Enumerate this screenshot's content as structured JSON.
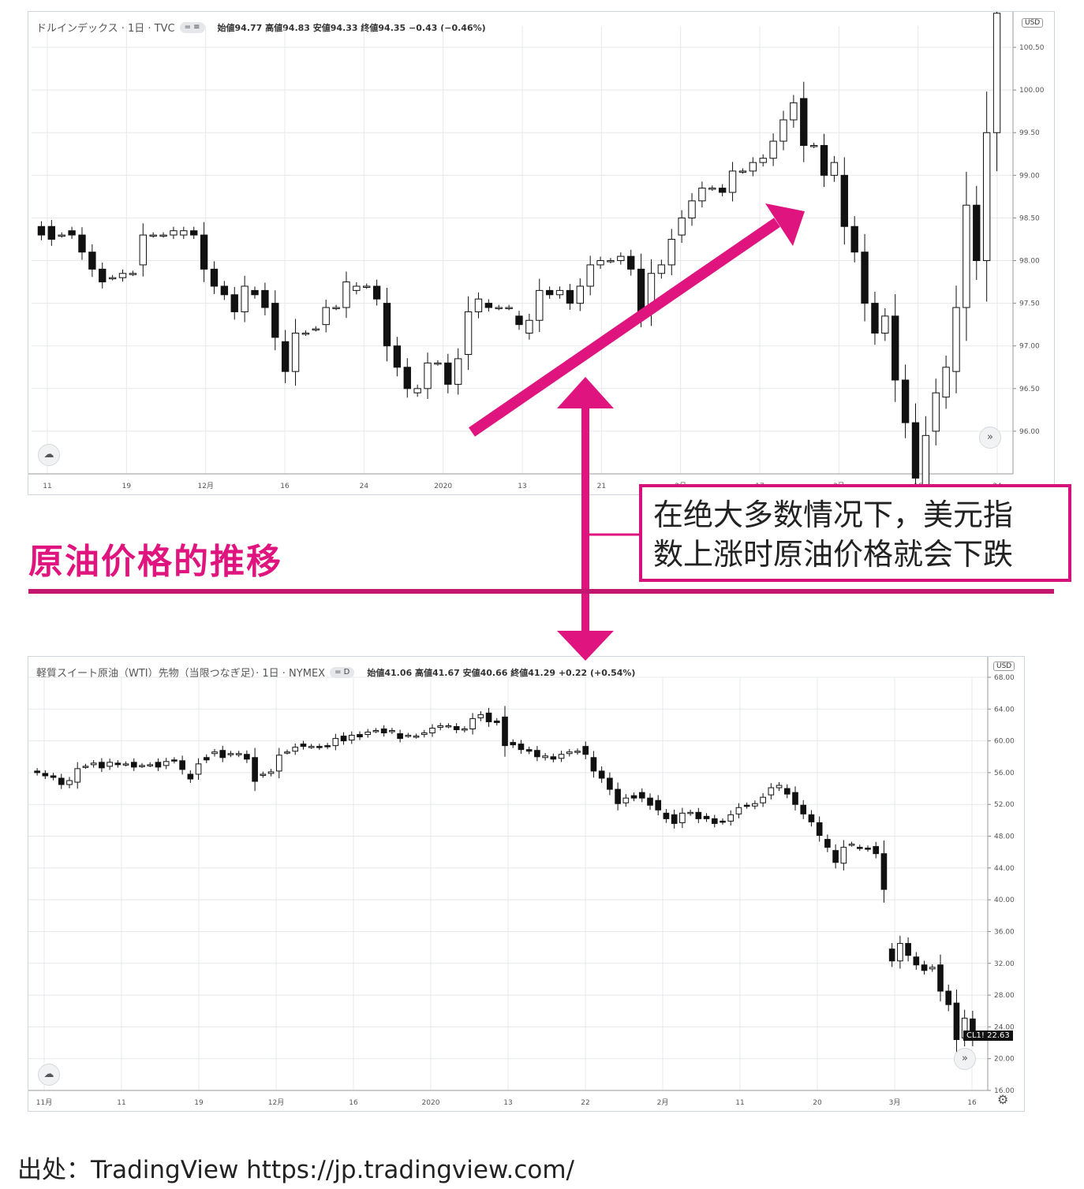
{
  "colors": {
    "accent": "#e0147e",
    "grid": "#e6e8ec",
    "candle": "#111111",
    "axis": "#555555"
  },
  "chart_data": [
    {
      "type": "candlestick",
      "title": "ドルインデックス · 1日 · TVC",
      "legend_pill": "= ≡",
      "ohlc_text": "始値94.77 高値94.83 安値94.33 終値94.35 −0.43 (−0.46%)",
      "currency": "USD",
      "ylim": [
        95.5,
        100.75
      ],
      "yticks": [
        "100.50",
        "100.00",
        "99.50",
        "99.00",
        "98.50",
        "98.00",
        "97.50",
        "97.00",
        "96.50",
        "96.00"
      ],
      "xticks": [
        "11",
        "19",
        "12月",
        "16",
        "24",
        "2020",
        "13",
        "21",
        "2月",
        "17",
        "3月",
        "16",
        "24"
      ],
      "candles": [
        [
          98.4,
          98.3
        ],
        [
          98.4,
          98.25
        ],
        [
          98.3,
          98.3
        ],
        [
          98.35,
          98.3
        ],
        [
          98.3,
          98.1
        ],
        [
          98.1,
          97.9
        ],
        [
          97.9,
          97.75
        ],
        [
          97.8,
          97.8
        ],
        [
          97.8,
          97.85
        ],
        [
          97.85,
          97.85
        ],
        [
          97.95,
          98.3
        ],
        [
          98.3,
          98.3
        ],
        [
          98.3,
          98.3
        ],
        [
          98.3,
          98.35
        ],
        [
          98.3,
          98.35
        ],
        [
          98.35,
          98.3
        ],
        [
          98.3,
          97.9
        ],
        [
          97.9,
          97.7
        ],
        [
          97.7,
          97.6
        ],
        [
          97.6,
          97.4
        ],
        [
          97.4,
          97.7
        ],
        [
          97.65,
          97.6
        ],
        [
          97.65,
          97.45
        ],
        [
          97.5,
          97.1
        ],
        [
          97.05,
          96.7
        ],
        [
          96.7,
          97.15
        ],
        [
          97.15,
          97.15
        ],
        [
          97.2,
          97.2
        ],
        [
          97.25,
          97.45
        ],
        [
          97.45,
          97.45
        ],
        [
          97.45,
          97.75
        ],
        [
          97.65,
          97.7
        ],
        [
          97.7,
          97.7
        ],
        [
          97.7,
          97.55
        ],
        [
          97.5,
          97.0
        ],
        [
          97.0,
          96.75
        ],
        [
          96.75,
          96.5
        ],
        [
          96.45,
          96.5
        ],
        [
          96.5,
          96.8
        ],
        [
          96.8,
          96.8
        ],
        [
          96.8,
          96.55
        ],
        [
          96.55,
          96.85
        ],
        [
          96.9,
          97.4
        ],
        [
          97.4,
          97.55
        ],
        [
          97.5,
          97.45
        ],
        [
          97.45,
          97.45
        ],
        [
          97.45,
          97.45
        ],
        [
          97.35,
          97.25
        ],
        [
          97.15,
          97.3
        ],
        [
          97.3,
          97.65
        ],
        [
          97.65,
          97.6
        ],
        [
          97.6,
          97.65
        ],
        [
          97.65,
          97.5
        ],
        [
          97.5,
          97.7
        ],
        [
          97.7,
          97.95
        ],
        [
          97.95,
          98.0
        ],
        [
          98.0,
          98.0
        ],
        [
          98.0,
          98.05
        ],
        [
          98.05,
          97.9
        ],
        [
          97.9,
          97.4
        ],
        [
          97.4,
          97.85
        ],
        [
          97.85,
          97.95
        ],
        [
          97.95,
          98.25
        ],
        [
          98.3,
          98.5
        ],
        [
          98.5,
          98.7
        ],
        [
          98.7,
          98.85
        ],
        [
          98.85,
          98.85
        ],
        [
          98.85,
          98.8
        ],
        [
          98.8,
          99.05
        ],
        [
          99.05,
          99.05
        ],
        [
          99.05,
          99.15
        ],
        [
          99.15,
          99.2
        ],
        [
          99.2,
          99.4
        ],
        [
          99.4,
          99.65
        ],
        [
          99.65,
          99.85
        ],
        [
          99.9,
          99.35
        ],
        [
          99.35,
          99.35
        ],
        [
          99.35,
          99.0
        ],
        [
          99.0,
          99.15
        ],
        [
          99.0,
          98.4
        ],
        [
          98.4,
          98.1
        ],
        [
          98.1,
          97.5
        ],
        [
          97.5,
          97.15
        ],
        [
          97.15,
          97.35
        ],
        [
          97.35,
          96.6
        ],
        [
          96.6,
          96.1
        ],
        [
          96.1,
          95.45
        ],
        [
          95.3,
          95.95
        ],
        [
          96.0,
          96.45
        ],
        [
          96.4,
          96.75
        ],
        [
          96.7,
          97.45
        ],
        [
          97.45,
          98.65
        ],
        [
          98.65,
          98.0
        ],
        [
          98.0,
          99.5
        ],
        [
          99.5,
          100.9
        ]
      ]
    },
    {
      "type": "candlestick",
      "title": "軽質スイート原油（WTI）先物（当限つなぎ足）· 1日 · NYMEX",
      "legend_pill": "= D",
      "ohlc_text": "始値41.06 高値41.67 安値40.66 終値41.29 +0.22 (+0.54%)",
      "currency": "USD",
      "last_price_label": "CL1!",
      "last_price": "22.63",
      "ylim": [
        16,
        68
      ],
      "yticks": [
        "68.00",
        "64.00",
        "60.00",
        "56.00",
        "52.00",
        "48.00",
        "44.00",
        "40.00",
        "36.00",
        "32.00",
        "28.00",
        "24.00",
        "20.00",
        "16.00"
      ],
      "xticks": [
        "11月",
        "11",
        "19",
        "12月",
        "16",
        "2020",
        "13",
        "22",
        "2月",
        "11",
        "20",
        "3月",
        "16"
      ],
      "candles": [
        [
          56.2,
          56.0
        ],
        [
          55.9,
          55.6
        ],
        [
          55.6,
          55.4
        ],
        [
          55.3,
          54.5
        ],
        [
          54.5,
          55.0
        ],
        [
          54.8,
          56.5
        ],
        [
          56.8,
          56.8
        ],
        [
          57.0,
          57.2
        ],
        [
          57.3,
          56.6
        ],
        [
          56.8,
          57.3
        ],
        [
          57.2,
          57.0
        ],
        [
          57.1,
          57.1
        ],
        [
          57.3,
          56.7
        ],
        [
          56.9,
          56.9
        ],
        [
          57.0,
          57.0
        ],
        [
          57.3,
          56.7
        ],
        [
          56.9,
          57.4
        ],
        [
          57.6,
          57.5
        ],
        [
          57.5,
          56.4
        ],
        [
          55.8,
          55.2
        ],
        [
          55.8,
          57.1
        ],
        [
          57.9,
          57.6
        ],
        [
          58.4,
          58.6
        ],
        [
          58.8,
          57.9
        ],
        [
          58.3,
          58.4
        ],
        [
          58.3,
          58.4
        ],
        [
          58.3,
          57.7
        ],
        [
          57.9,
          54.9
        ],
        [
          55.7,
          55.8
        ],
        [
          55.9,
          56.1
        ],
        [
          56.2,
          58.2
        ],
        [
          58.6,
          58.6
        ],
        [
          58.7,
          59.2
        ],
        [
          59.6,
          59.3
        ],
        [
          59.3,
          59.3
        ],
        [
          59.3,
          59.2
        ],
        [
          59.4,
          59.3
        ],
        [
          59.4,
          60.3
        ],
        [
          60.6,
          60.0
        ],
        [
          60.1,
          60.7
        ],
        [
          60.8,
          60.5
        ],
        [
          60.8,
          61.1
        ],
        [
          61.3,
          61.3
        ],
        [
          61.5,
          61.0
        ],
        [
          61.2,
          61.3
        ],
        [
          60.9,
          60.3
        ],
        [
          60.7,
          60.7
        ],
        [
          60.6,
          60.6
        ],
        [
          60.8,
          61.0
        ],
        [
          61.0,
          61.6
        ],
        [
          61.7,
          61.9
        ],
        [
          61.9,
          61.9
        ],
        [
          61.8,
          61.4
        ],
        [
          61.4,
          61.5
        ],
        [
          61.5,
          62.8
        ],
        [
          62.9,
          63.3
        ],
        [
          63.5,
          62.4
        ],
        [
          62.5,
          62.3
        ],
        [
          63.0,
          59.4
        ],
        [
          59.8,
          59.5
        ],
        [
          59.6,
          58.9
        ],
        [
          58.9,
          58.7
        ],
        [
          58.8,
          58.0
        ],
        [
          57.9,
          58.1
        ],
        [
          58.0,
          57.7
        ],
        [
          57.8,
          58.3
        ],
        [
          58.4,
          58.6
        ],
        [
          58.6,
          58.7
        ],
        [
          59.3,
          58.3
        ],
        [
          57.9,
          56.2
        ],
        [
          56.2,
          55.3
        ],
        [
          55.3,
          53.9
        ],
        [
          53.9,
          52.1
        ],
        [
          52.2,
          52.8
        ],
        [
          53.1,
          52.8
        ],
        [
          53.5,
          52.8
        ],
        [
          52.8,
          51.9
        ],
        [
          52.5,
          51.3
        ],
        [
          50.9,
          50.2
        ],
        [
          50.7,
          49.6
        ],
        [
          49.7,
          50.9
        ],
        [
          50.9,
          51.0
        ],
        [
          51.0,
          50.2
        ],
        [
          50.5,
          50.2
        ],
        [
          50.2,
          49.6
        ],
        [
          49.9,
          49.8
        ],
        [
          49.9,
          50.7
        ],
        [
          50.8,
          51.6
        ],
        [
          51.9,
          51.8
        ],
        [
          51.8,
          52.1
        ],
        [
          52.2,
          52.9
        ],
        [
          53.2,
          54.1
        ],
        [
          54.1,
          54.4
        ],
        [
          54.0,
          53.3
        ],
        [
          53.5,
          52.0
        ],
        [
          51.9,
          50.8
        ],
        [
          50.7,
          49.8
        ],
        [
          49.7,
          48.1
        ],
        [
          47.6,
          46.6
        ],
        [
          46.2,
          44.7
        ],
        [
          44.6,
          46.6
        ],
        [
          47.0,
          47.0
        ],
        [
          46.6,
          46.5
        ],
        [
          46.5,
          46.4
        ],
        [
          46.7,
          45.8
        ],
        [
          45.8,
          41.3
        ],
        [
          33.8,
          32.3
        ],
        [
          32.3,
          34.5
        ],
        [
          34.5,
          33.0
        ],
        [
          32.8,
          31.8
        ],
        [
          31.8,
          31.1
        ],
        [
          31.3,
          31.5
        ],
        [
          31.8,
          28.5
        ],
        [
          28.5,
          26.8
        ],
        [
          27.0,
          22.4
        ],
        [
          22.6,
          25.1
        ],
        [
          25.0,
          22.6
        ]
      ]
    }
  ],
  "callout": {
    "line1": "在绝大多数情况下，美元指",
    "line2": "数上涨时原油价格就会下跌"
  },
  "section_title": "原油价格的推移",
  "source": "出处：TradingView https://jp.tradingview.com/",
  "icons": [
    "tradingview-cloud-icon",
    "double-chevron-right-icon",
    "gear-icon"
  ]
}
